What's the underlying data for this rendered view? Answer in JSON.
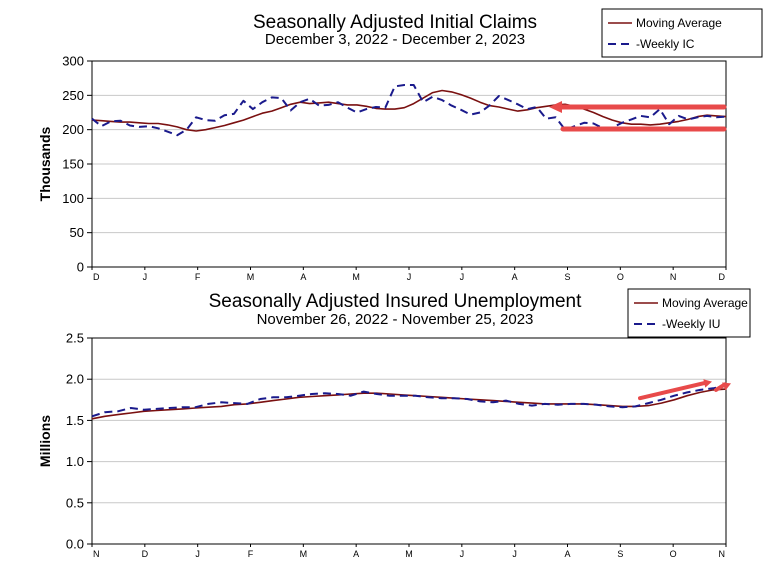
{
  "colors": {
    "moving_average": "#7a1010",
    "weekly": "#1a1a8c",
    "annotation": "#e84a4a",
    "axis": "#000000",
    "gridline": "#c8c8c8"
  },
  "chart_data": [
    {
      "type": "line",
      "title": "Seasonally Adjusted Initial Claims",
      "subtitle": "December 3, 2022 - December 2, 2023",
      "ylabel": "Thousands",
      "xlabel": "",
      "ylim": [
        0,
        300
      ],
      "yticks": [
        0,
        50,
        100,
        150,
        200,
        250,
        300
      ],
      "grid": "horizontal",
      "legend_position": "top-right",
      "month_labels": [
        "D",
        "J",
        "F",
        "M",
        "A",
        "M",
        "J",
        "J",
        "A",
        "S",
        "O",
        "N",
        "D"
      ],
      "series": [
        {
          "name": "Moving Average",
          "style": "solid",
          "values": [
            214,
            213,
            212,
            211,
            211,
            210,
            209,
            209,
            207,
            204,
            200,
            198,
            200,
            203,
            206,
            210,
            214,
            219,
            224,
            227,
            232,
            237,
            240,
            238,
            239,
            240,
            238,
            236,
            236,
            234,
            231,
            230,
            230,
            232,
            238,
            246,
            254,
            257,
            255,
            251,
            246,
            240,
            235,
            233,
            230,
            227,
            229,
            232,
            234,
            236,
            237,
            234,
            230,
            225,
            219,
            214,
            210,
            208,
            208,
            207,
            208,
            210,
            212,
            215,
            219,
            221,
            220,
            219
          ]
        },
        {
          "name": "Weekly IC",
          "style": "dashed",
          "values": [
            216,
            205,
            212,
            213,
            206,
            204,
            205,
            202,
            197,
            192,
            200,
            218,
            214,
            213,
            221,
            223,
            242,
            230,
            240,
            247,
            246,
            228,
            240,
            245,
            235,
            236,
            240,
            232,
            225,
            230,
            233,
            232,
            263,
            265,
            265,
            240,
            248,
            243,
            235,
            229,
            222,
            225,
            235,
            249,
            243,
            237,
            230,
            233,
            216,
            218,
            200,
            205,
            210,
            209,
            202,
            203,
            210,
            215,
            220,
            218,
            230,
            208,
            220,
            215,
            218,
            220,
            218,
            219
          ]
        }
      ],
      "annotations": [
        {
          "shape": "arrow-left",
          "y": 233
        },
        {
          "shape": "line",
          "y": 201
        }
      ]
    },
    {
      "type": "line",
      "title": "Seasonally Adjusted Insured Unemployment",
      "subtitle": "November 26, 2022 - November 25, 2023",
      "ylabel": "Millions",
      "xlabel": "",
      "ylim": [
        0.0,
        2.5
      ],
      "yticks": [
        "0.0",
        "0.5",
        "1.0",
        "1.5",
        "2.0",
        "2.5"
      ],
      "grid": "horizontal",
      "legend_position": "top-right",
      "month_labels": [
        "N",
        "D",
        "J",
        "F",
        "M",
        "A",
        "M",
        "J",
        "J",
        "A",
        "S",
        "O",
        "N"
      ],
      "series": [
        {
          "name": "Moving Average",
          "style": "solid",
          "values": [
            1.52,
            1.55,
            1.57,
            1.59,
            1.61,
            1.62,
            1.63,
            1.64,
            1.65,
            1.66,
            1.67,
            1.69,
            1.7,
            1.72,
            1.74,
            1.76,
            1.78,
            1.79,
            1.8,
            1.81,
            1.82,
            1.83,
            1.83,
            1.82,
            1.81,
            1.8,
            1.79,
            1.78,
            1.77,
            1.76,
            1.75,
            1.74,
            1.73,
            1.72,
            1.71,
            1.7,
            1.7,
            1.7,
            1.7,
            1.69,
            1.68,
            1.67,
            1.67,
            1.68,
            1.71,
            1.75,
            1.8,
            1.84,
            1.87,
            1.88
          ]
        },
        {
          "name": "Weekly IU",
          "style": "dashed",
          "values": [
            1.55,
            1.6,
            1.61,
            1.65,
            1.63,
            1.64,
            1.65,
            1.66,
            1.66,
            1.7,
            1.72,
            1.71,
            1.7,
            1.76,
            1.78,
            1.78,
            1.8,
            1.82,
            1.83,
            1.82,
            1.8,
            1.85,
            1.82,
            1.8,
            1.8,
            1.8,
            1.78,
            1.77,
            1.77,
            1.76,
            1.73,
            1.72,
            1.74,
            1.7,
            1.68,
            1.7,
            1.69,
            1.7,
            1.7,
            1.69,
            1.67,
            1.66,
            1.67,
            1.71,
            1.75,
            1.8,
            1.84,
            1.87,
            1.89,
            1.92
          ]
        }
      ],
      "annotations": [
        {
          "shape": "arrow-up-right",
          "from": 1.77,
          "to": 1.97
        },
        {
          "shape": "arrow-up-right",
          "from": 1.87,
          "to": 1.95
        }
      ]
    }
  ]
}
